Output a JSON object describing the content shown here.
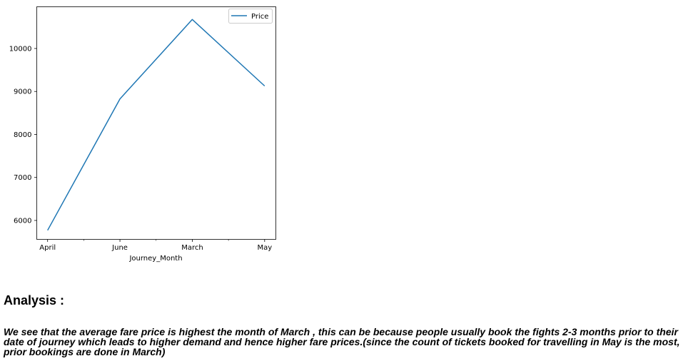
{
  "chart_data": {
    "type": "line",
    "categories": [
      "April",
      "June",
      "March",
      "May"
    ],
    "series": [
      {
        "name": "Price",
        "values": [
          5770,
          8828,
          10674,
          9128
        ],
        "color": "#1f77b4"
      }
    ],
    "xlabel": "Journey_Month",
    "ylabel": "",
    "ylim": [
      5560,
      10970
    ],
    "yticks": [
      6000,
      7000,
      8000,
      9000,
      10000
    ],
    "grid": false,
    "legend": "top-right"
  },
  "analysis": {
    "heading": "Analysis :",
    "text": "We see that the average fare price is highest the month of March , this can be because people usually book the fights 2-3 months prior to their date of journey which leads to higher demand and hence higher fare prices.(since the count of tickets booked for travelling in May is the most, prior bookings are done in March)"
  }
}
